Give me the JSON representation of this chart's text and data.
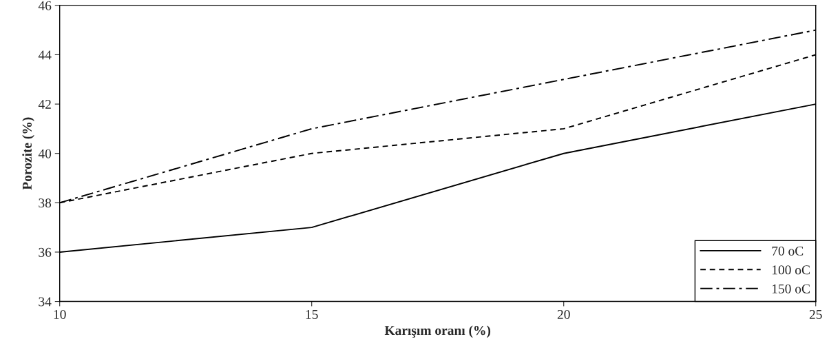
{
  "chart_data": {
    "type": "line",
    "xlabel": "Karışım oranı (%)",
    "ylabel": "Porozite (%)",
    "x": [
      10,
      15,
      20,
      25
    ],
    "series": [
      {
        "name": "70 oC",
        "color": "#000000",
        "line_style": "solid",
        "values": [
          36,
          37,
          40,
          42
        ]
      },
      {
        "name": "100 oC",
        "color": "#000000",
        "line_style": "dashed",
        "values": [
          38,
          40,
          41,
          44
        ]
      },
      {
        "name": "150 oC",
        "color": "#000000",
        "line_style": "dashdot",
        "values": [
          38,
          41,
          43,
          45
        ]
      }
    ],
    "xlim": [
      10,
      25
    ],
    "xticks": [
      10,
      15,
      20,
      25
    ],
    "ylim": [
      34,
      46
    ],
    "yticks": [
      34,
      36,
      38,
      40,
      42,
      44,
      46
    ],
    "grid": false,
    "legend": "bottom right",
    "marker": "none"
  }
}
